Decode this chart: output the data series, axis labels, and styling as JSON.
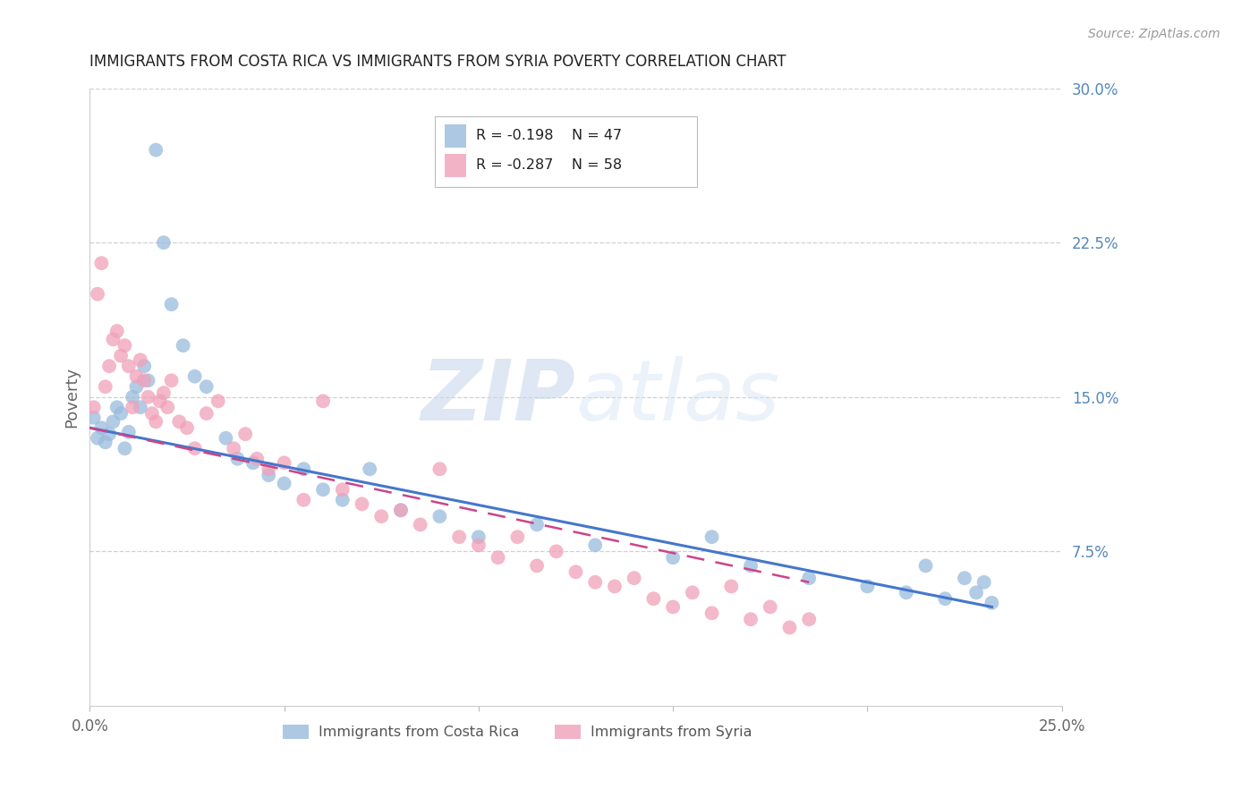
{
  "title": "IMMIGRANTS FROM COSTA RICA VS IMMIGRANTS FROM SYRIA POVERTY CORRELATION CHART",
  "source": "Source: ZipAtlas.com",
  "ylabel": "Poverty",
  "xlim": [
    0.0,
    0.25
  ],
  "ylim": [
    0.0,
    0.3
  ],
  "xticks": [
    0.0,
    0.05,
    0.1,
    0.15,
    0.2,
    0.25
  ],
  "xticklabels": [
    "0.0%",
    "",
    "",
    "",
    "",
    "25.0%"
  ],
  "ytick_right": [
    0.0,
    0.075,
    0.15,
    0.225,
    0.3
  ],
  "yticklabels_right": [
    "",
    "7.5%",
    "15.0%",
    "22.5%",
    "30.0%"
  ],
  "background_color": "#ffffff",
  "grid_color": "#d0d0d0",
  "series1_color": "#99bbdd",
  "series2_color": "#f0a0b8",
  "series1_edge": "#88aacc",
  "series2_edge": "#e090a8",
  "series1_label": "Immigrants from Costa Rica",
  "series2_label": "Immigrants from Syria",
  "series1_R": "-0.198",
  "series1_N": "47",
  "series2_R": "-0.287",
  "series2_N": "58",
  "watermark_zip": "ZIP",
  "watermark_atlas": "atlas",
  "title_color": "#222222",
  "axis_label_color": "#666666",
  "right_tick_color": "#5588bb",
  "line1_color": "#4477cc",
  "line2_color": "#cc4488",
  "line2_dash": [
    8,
    5
  ],
  "costa_rica_x": [
    0.001,
    0.002,
    0.003,
    0.004,
    0.005,
    0.006,
    0.007,
    0.008,
    0.009,
    0.01,
    0.011,
    0.012,
    0.013,
    0.014,
    0.015,
    0.017,
    0.019,
    0.021,
    0.024,
    0.027,
    0.03,
    0.035,
    0.038,
    0.042,
    0.046,
    0.05,
    0.055,
    0.06,
    0.065,
    0.072,
    0.08,
    0.09,
    0.1,
    0.115,
    0.13,
    0.15,
    0.16,
    0.17,
    0.185,
    0.2,
    0.21,
    0.215,
    0.22,
    0.225,
    0.228,
    0.23,
    0.232
  ],
  "costa_rica_y": [
    0.14,
    0.13,
    0.135,
    0.128,
    0.132,
    0.138,
    0.145,
    0.142,
    0.125,
    0.133,
    0.15,
    0.155,
    0.145,
    0.165,
    0.158,
    0.27,
    0.225,
    0.195,
    0.175,
    0.16,
    0.155,
    0.13,
    0.12,
    0.118,
    0.112,
    0.108,
    0.115,
    0.105,
    0.1,
    0.115,
    0.095,
    0.092,
    0.082,
    0.088,
    0.078,
    0.072,
    0.082,
    0.068,
    0.062,
    0.058,
    0.055,
    0.068,
    0.052,
    0.062,
    0.055,
    0.06,
    0.05
  ],
  "syria_x": [
    0.001,
    0.002,
    0.003,
    0.004,
    0.005,
    0.006,
    0.007,
    0.008,
    0.009,
    0.01,
    0.011,
    0.012,
    0.013,
    0.014,
    0.015,
    0.016,
    0.017,
    0.018,
    0.019,
    0.02,
    0.021,
    0.023,
    0.025,
    0.027,
    0.03,
    0.033,
    0.037,
    0.04,
    0.043,
    0.046,
    0.05,
    0.055,
    0.06,
    0.065,
    0.07,
    0.075,
    0.08,
    0.085,
    0.09,
    0.095,
    0.1,
    0.105,
    0.11,
    0.115,
    0.12,
    0.125,
    0.13,
    0.135,
    0.14,
    0.145,
    0.15,
    0.155,
    0.16,
    0.165,
    0.17,
    0.175,
    0.18,
    0.185
  ],
  "syria_y": [
    0.145,
    0.2,
    0.215,
    0.155,
    0.165,
    0.178,
    0.182,
    0.17,
    0.175,
    0.165,
    0.145,
    0.16,
    0.168,
    0.158,
    0.15,
    0.142,
    0.138,
    0.148,
    0.152,
    0.145,
    0.158,
    0.138,
    0.135,
    0.125,
    0.142,
    0.148,
    0.125,
    0.132,
    0.12,
    0.115,
    0.118,
    0.1,
    0.148,
    0.105,
    0.098,
    0.092,
    0.095,
    0.088,
    0.115,
    0.082,
    0.078,
    0.072,
    0.082,
    0.068,
    0.075,
    0.065,
    0.06,
    0.058,
    0.062,
    0.052,
    0.048,
    0.055,
    0.045,
    0.058,
    0.042,
    0.048,
    0.038,
    0.042
  ]
}
